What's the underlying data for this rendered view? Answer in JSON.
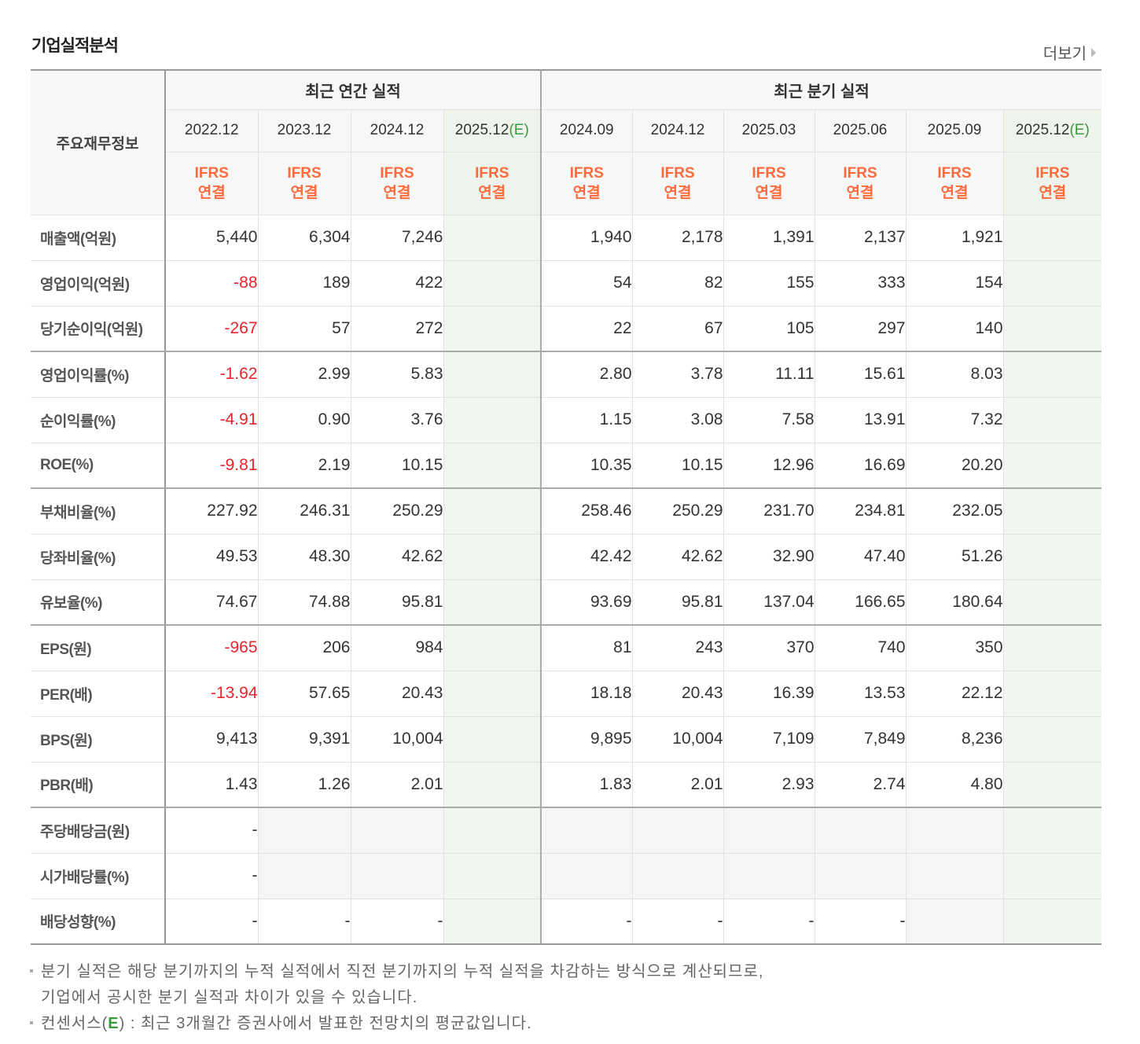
{
  "section_title": "기업실적분석",
  "more_label": "더보기",
  "header": {
    "main_label": "주요재무정보",
    "annual_group": "최근 연간 실적",
    "quarterly_group": "최근 분기 실적",
    "ifrs_line1": "IFRS",
    "ifrs_line2": "연결",
    "estimate_mark": "(E)",
    "annual_periods": [
      "2022.12",
      "2023.12",
      "2024.12",
      "2025.12"
    ],
    "quarterly_periods": [
      "2024.09",
      "2024.12",
      "2025.03",
      "2025.06",
      "2025.09",
      "2025.12"
    ]
  },
  "rows": [
    {
      "label": "매출액(억원)",
      "annual": [
        "5,440",
        "6,304",
        "7,246",
        ""
      ],
      "quarterly": [
        "1,940",
        "2,178",
        "1,391",
        "2,137",
        "1,921",
        ""
      ]
    },
    {
      "label": "영업이익(억원)",
      "annual": [
        "-88",
        "189",
        "422",
        ""
      ],
      "quarterly": [
        "54",
        "82",
        "155",
        "333",
        "154",
        ""
      ]
    },
    {
      "label": "당기순이익(억원)",
      "annual": [
        "-267",
        "57",
        "272",
        ""
      ],
      "quarterly": [
        "22",
        "67",
        "105",
        "297",
        "140",
        ""
      ]
    },
    {
      "label": "영업이익률(%)",
      "annual": [
        "-1.62",
        "2.99",
        "5.83",
        ""
      ],
      "quarterly": [
        "2.80",
        "3.78",
        "11.11",
        "15.61",
        "8.03",
        ""
      ]
    },
    {
      "label": "순이익률(%)",
      "annual": [
        "-4.91",
        "0.90",
        "3.76",
        ""
      ],
      "quarterly": [
        "1.15",
        "3.08",
        "7.58",
        "13.91",
        "7.32",
        ""
      ]
    },
    {
      "label": "ROE(%)",
      "annual": [
        "-9.81",
        "2.19",
        "10.15",
        ""
      ],
      "quarterly": [
        "10.35",
        "10.15",
        "12.96",
        "16.69",
        "20.20",
        ""
      ]
    },
    {
      "label": "부채비율(%)",
      "annual": [
        "227.92",
        "246.31",
        "250.29",
        ""
      ],
      "quarterly": [
        "258.46",
        "250.29",
        "231.70",
        "234.81",
        "232.05",
        ""
      ]
    },
    {
      "label": "당좌비율(%)",
      "annual": [
        "49.53",
        "48.30",
        "42.62",
        ""
      ],
      "quarterly": [
        "42.42",
        "42.62",
        "32.90",
        "47.40",
        "51.26",
        ""
      ]
    },
    {
      "label": "유보율(%)",
      "annual": [
        "74.67",
        "74.88",
        "95.81",
        ""
      ],
      "quarterly": [
        "93.69",
        "95.81",
        "137.04",
        "166.65",
        "180.64",
        ""
      ]
    },
    {
      "label": "EPS(원)",
      "annual": [
        "-965",
        "206",
        "984",
        ""
      ],
      "quarterly": [
        "81",
        "243",
        "370",
        "740",
        "350",
        ""
      ]
    },
    {
      "label": "PER(배)",
      "annual": [
        "-13.94",
        "57.65",
        "20.43",
        ""
      ],
      "quarterly": [
        "18.18",
        "20.43",
        "16.39",
        "13.53",
        "22.12",
        ""
      ]
    },
    {
      "label": "BPS(원)",
      "annual": [
        "9,413",
        "9,391",
        "10,004",
        ""
      ],
      "quarterly": [
        "9,895",
        "10,004",
        "7,109",
        "7,849",
        "8,236",
        ""
      ]
    },
    {
      "label": "PBR(배)",
      "annual": [
        "1.43",
        "1.26",
        "2.01",
        ""
      ],
      "quarterly": [
        "1.83",
        "2.01",
        "2.93",
        "2.74",
        "4.80",
        ""
      ]
    },
    {
      "label": "주당배당금(원)",
      "annual": [
        "-",
        null,
        null,
        null
      ],
      "quarterly": [
        null,
        null,
        null,
        null,
        null,
        null
      ]
    },
    {
      "label": "시가배당률(%)",
      "annual": [
        "-",
        null,
        null,
        null
      ],
      "quarterly": [
        null,
        null,
        null,
        null,
        null,
        null
      ]
    },
    {
      "label": "배당성향(%)",
      "annual": [
        "-",
        "-",
        "-",
        null
      ],
      "quarterly": [
        "-",
        "-",
        "-",
        "-",
        null,
        null
      ]
    }
  ],
  "notes": {
    "note1_line1": "분기 실적은 해당 분기까지의 누적 실적에서 직전 분기까지의 누적 실적을 차감하는 방식으로 계산되므로,",
    "note1_line2": "기업에서 공시한 분기 실적과 차이가 있을 수 있습니다.",
    "note2_prefix": "컨센서스(",
    "note2_mark": "E",
    "note2_suffix": ") : 최근 3개월간 증권사에서 발표한 전망치의 평균값입니다."
  },
  "colors": {
    "negative": "#e8242f",
    "ifrs": "#ff6a3d",
    "estimate_mark": "#3a9a3a",
    "estimate_bg": "#f1f7f0"
  }
}
